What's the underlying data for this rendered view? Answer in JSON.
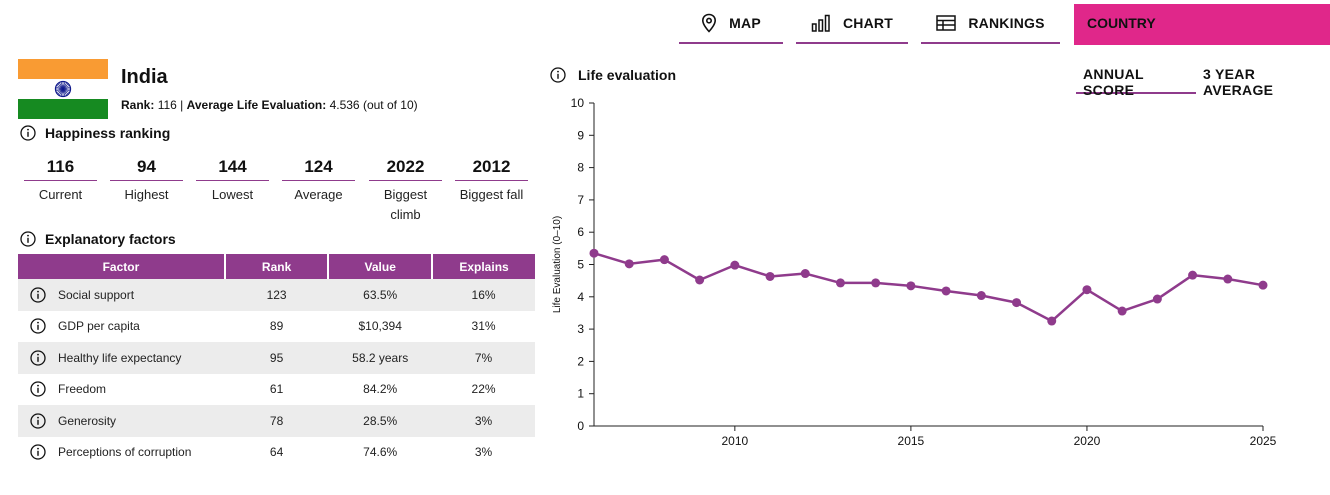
{
  "nav": {
    "map": "MAP",
    "chart": "CHART",
    "rankings": "RANKINGS",
    "country": "COUNTRY"
  },
  "country": {
    "name": "India",
    "rank_label": "Rank:",
    "rank_value": "116",
    "separator": "|",
    "avg_label": "Average Life Evaluation:",
    "avg_value": "4.536 (out of 10)",
    "flag_colors": {
      "top": "#f99b33",
      "middle": "#ffffff",
      "bottom": "#168a21",
      "wheel": "#101a8c"
    }
  },
  "happiness_ranking": {
    "title": "Happiness ranking",
    "stats": [
      {
        "value": "116",
        "label": "Current"
      },
      {
        "value": "94",
        "label": "Highest"
      },
      {
        "value": "144",
        "label": "Lowest"
      },
      {
        "value": "124",
        "label": "Average"
      },
      {
        "value": "2022",
        "label": "Biggest climb"
      },
      {
        "value": "2012",
        "label": "Biggest fall"
      }
    ]
  },
  "explanatory": {
    "title": "Explanatory factors",
    "headers": [
      "Factor",
      "Rank",
      "Value",
      "Explains"
    ],
    "rows": [
      {
        "factor": "Social support",
        "rank": "123",
        "value": "63.5%",
        "explains": "16%"
      },
      {
        "factor": "GDP per capita",
        "rank": "89",
        "value": "$10,394",
        "explains": "31%"
      },
      {
        "factor": "Healthy life expectancy",
        "rank": "95",
        "value": "58.2 years",
        "explains": "7%"
      },
      {
        "factor": "Freedom",
        "rank": "61",
        "value": "84.2%",
        "explains": "22%"
      },
      {
        "factor": "Generosity",
        "rank": "78",
        "value": "28.5%",
        "explains": "3%"
      },
      {
        "factor": "Perceptions of corruption",
        "rank": "64",
        "value": "74.6%",
        "explains": "3%"
      }
    ]
  },
  "chart_tabs": {
    "annual": "ANNUAL SCORE",
    "three_year": "3 YEAR AVERAGE",
    "active": "annual"
  },
  "chart_data": {
    "type": "line",
    "title": "Life evaluation",
    "ylabel": "Life Evaluation (0–10)",
    "xlabel": "",
    "ylim": [
      0,
      10
    ],
    "xlim": [
      2006,
      2025
    ],
    "yticks": [
      0,
      1,
      2,
      3,
      4,
      5,
      6,
      7,
      8,
      9,
      10
    ],
    "xticks": [
      2010,
      2015,
      2020,
      2025
    ],
    "color": "#8f3b8c",
    "series": [
      {
        "name": "Life evaluation",
        "x": [
          2006,
          2007,
          2008,
          2009,
          2010,
          2011,
          2012,
          2013,
          2014,
          2015,
          2016,
          2017,
          2018,
          2019,
          2020,
          2021,
          2022,
          2023,
          2024,
          2025
        ],
        "values": [
          5.35,
          5.02,
          5.15,
          4.52,
          4.98,
          4.63,
          4.72,
          4.43,
          4.43,
          4.34,
          4.18,
          4.04,
          3.82,
          3.25,
          4.22,
          3.56,
          3.93,
          4.67,
          4.55,
          4.36
        ]
      }
    ]
  }
}
